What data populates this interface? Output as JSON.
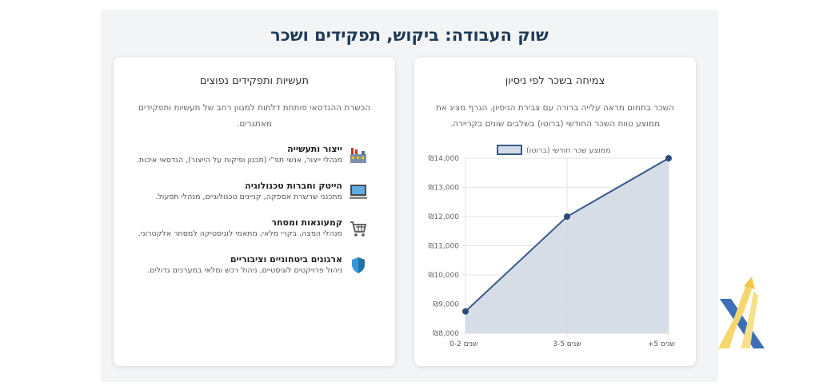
{
  "page": {
    "title": "שוק העבודה: ביקוש, תפקידים ושכר"
  },
  "chart_card": {
    "title": "צמיחה בשכר לפי ניסיון",
    "description": "השכר בתחום מראה עלייה ברורה עם צבירת הניסיון. הגרף מציג את ממוצע טווח השכר החודשי (ברוטו) בשלבים שונים בקריירה."
  },
  "list_card": {
    "title": "תעשיות ותפקידים נפוצים",
    "description": "הכשרת ההנדסאי פותחת דלתות למגוון רחב של תעשיות ותפקידים מאתגרים.",
    "items": [
      {
        "icon": "factory-icon",
        "title": "ייצור ותעשייה",
        "desc": "מנהלי ייצור, אנשי תפ\"י (תכנון ופיקוח על הייצור), הנדסאי איכות."
      },
      {
        "icon": "computer-icon",
        "title": "הייטק וחברות טכנולוגיה",
        "desc": "מתכנני שרשרת אספקה, קניינים טכנולוגיים, מנהלי תפעול."
      },
      {
        "icon": "shopping-cart-icon",
        "title": "קמעונאות ומסחר",
        "desc": "מנהלי הפצה, בקרי מלאי, מתאמי לוגיסטיקה למסחר אלקטרוני."
      },
      {
        "icon": "shield-icon",
        "title": "ארגונים ביטחוניים וציבוריים",
        "desc": "ניהול פרויקטים לוגיסטיים, ניהול רכש ומלאי במערכים גדולים."
      }
    ]
  },
  "chart_data": {
    "type": "area",
    "categories": [
      "0-2 שנים",
      "3-5 שנים",
      "+5 שנים"
    ],
    "series": [
      {
        "name": "ממוצע שכר חודשי (ברוטו)",
        "values": [
          8750,
          12000,
          14000
        ]
      }
    ],
    "yticks": [
      "₪8,000",
      "₪9,000",
      "₪10,000",
      "₪11,000",
      "₪12,000",
      "₪13,000",
      "₪14,000"
    ],
    "ylim": [
      8000,
      14000
    ],
    "legend": "top",
    "grid": true,
    "colors": {
      "line": "#3b5a8a",
      "fill": "#d4dbe6",
      "point": "#2e4a78"
    }
  }
}
